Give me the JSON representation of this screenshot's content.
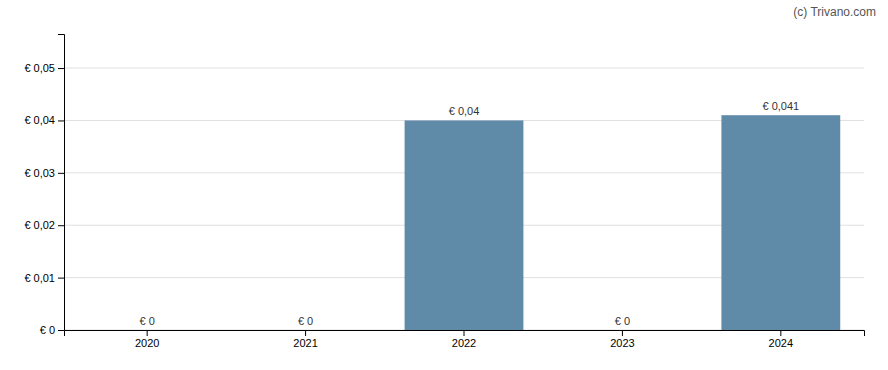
{
  "chart_data": {
    "type": "bar",
    "categories": [
      "2020",
      "2021",
      "2022",
      "2023",
      "2024"
    ],
    "values": [
      0,
      0,
      0.04,
      0,
      0.041
    ],
    "value_labels": [
      "€ 0",
      "€ 0",
      "€ 0,04",
      "€ 0",
      "€ 0,041"
    ],
    "data_labels": true,
    "color": "#5f8aa8",
    "ylim": [
      0,
      0.0565
    ],
    "yticks": [
      {
        "value": 0,
        "label": "€ 0"
      },
      {
        "value": 0.01,
        "label": "€ 0,01"
      },
      {
        "value": 0.02,
        "label": "€ 0,02"
      },
      {
        "value": 0.03,
        "label": "€ 0,03"
      },
      {
        "value": 0.04,
        "label": "€ 0,04"
      },
      {
        "value": 0.05,
        "label": "€ 0,05"
      }
    ],
    "grid": true,
    "annotations": [
      "(c) Trivano.com"
    ]
  }
}
